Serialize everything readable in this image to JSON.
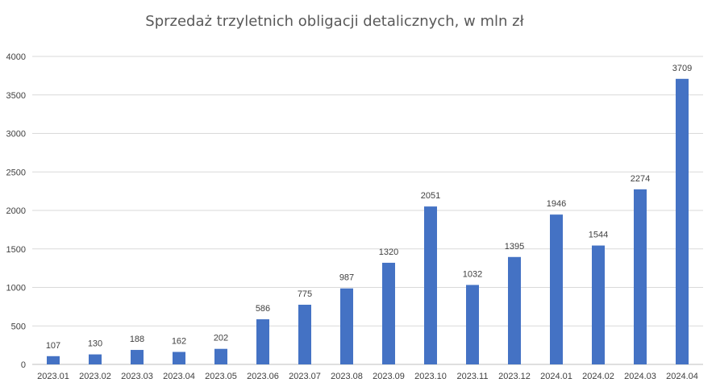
{
  "chart_data": {
    "type": "bar",
    "title": "Sprzedaż trzyletnich obligacji detalicznych, w mln zł",
    "xlabel": "",
    "ylabel": "",
    "categories": [
      "2023.01",
      "2023.02",
      "2023.03",
      "2023.04",
      "2023.05",
      "2023.06",
      "2023.07",
      "2023.08",
      "2023.09",
      "2023.10",
      "2023.11",
      "2023.12",
      "2024.01",
      "2024.02",
      "2024.03",
      "2024.04"
    ],
    "values": [
      107,
      130,
      188,
      162,
      202,
      586,
      775,
      987,
      1320,
      2051,
      1032,
      1395,
      1946,
      1544,
      2274,
      3709
    ],
    "ylim": [
      0,
      4000
    ],
    "yticks": [
      0,
      500,
      1000,
      1500,
      2000,
      2500,
      3000,
      3500,
      4000
    ],
    "grid": true,
    "data_labels": true,
    "colors": {
      "bar": "#4472C4",
      "grid": "#D9D9D9",
      "text": "#404040",
      "title": "#595959"
    }
  }
}
